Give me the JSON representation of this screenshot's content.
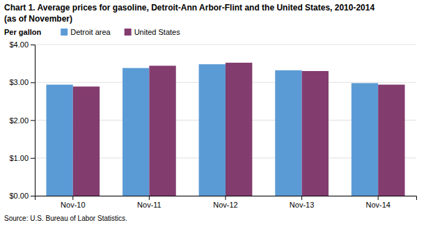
{
  "chart_data": {
    "type": "bar",
    "title": "Chart 1. Average prices for gasoline, Detroit-Ann Arbor-Flint and the United States, 2010-2014",
    "subtitle": "(as of November)",
    "y_label": "Per gallon",
    "annotations": [
      "Source: U.S. Bureau of Labor Statistics."
    ],
    "categories": [
      "Nov-10",
      "Nov-11",
      "Nov-12",
      "Nov-13",
      "Nov-14"
    ],
    "series": [
      {
        "name": "Detroit area",
        "color": "#5B9BD5",
        "values": [
          2.94,
          3.38,
          3.48,
          3.32,
          2.98
        ]
      },
      {
        "name": "United States",
        "color": "#833C6E",
        "values": [
          2.89,
          3.44,
          3.52,
          3.3,
          2.94
        ]
      }
    ],
    "ylim": [
      0.0,
      4.0
    ],
    "yticks": [
      {
        "value": 0.0,
        "label": "$0.00"
      },
      {
        "value": 1.0,
        "label": "$1.00"
      },
      {
        "value": 2.0,
        "label": "$2.00"
      },
      {
        "value": 3.0,
        "label": "$3.00"
      },
      {
        "value": 4.0,
        "label": "$4.00"
      }
    ],
    "grid": true,
    "legend": "top"
  }
}
